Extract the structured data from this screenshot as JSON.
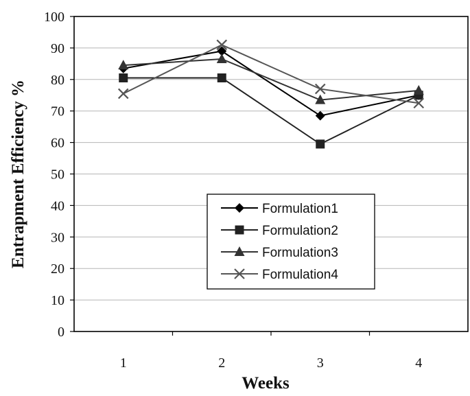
{
  "chart_data": {
    "type": "line",
    "title": "",
    "xlabel": "Weeks",
    "ylabel": "Entrapment Efficiency %",
    "categories": [
      "1",
      "2",
      "3",
      "4"
    ],
    "ylim": [
      0,
      100
    ],
    "yticks": [
      0,
      10,
      20,
      30,
      40,
      50,
      60,
      70,
      80,
      90,
      100
    ],
    "grid": true,
    "legend_position": "center-bottom",
    "series": [
      {
        "name": "Formulation1",
        "marker": "diamond",
        "color": "#000000",
        "values": [
          83.5,
          89,
          68.5,
          75
        ]
      },
      {
        "name": "Formulation2",
        "marker": "square",
        "color": "#222222",
        "values": [
          80.5,
          80.5,
          59.5,
          75
        ]
      },
      {
        "name": "Formulation3",
        "marker": "triangle",
        "color": "#333333",
        "values": [
          84.5,
          86.5,
          73.5,
          76.5
        ]
      },
      {
        "name": "Formulation4",
        "marker": "x",
        "color": "#555555",
        "values": [
          75.5,
          91,
          77,
          72.5
        ]
      }
    ]
  }
}
